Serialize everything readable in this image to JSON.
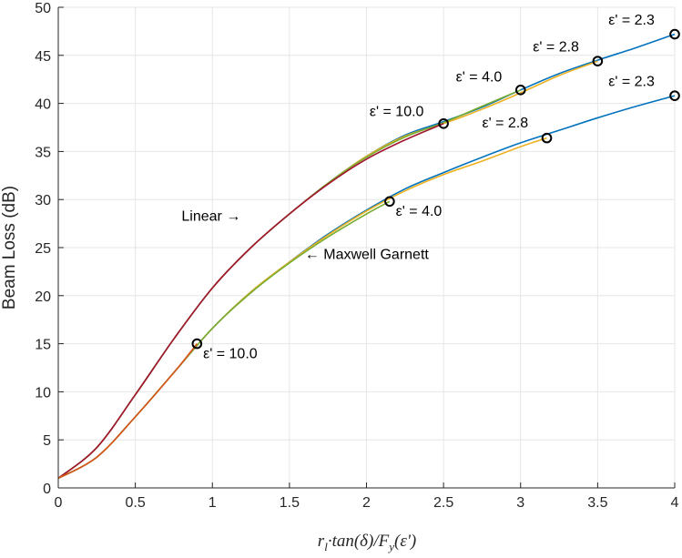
{
  "chart_data": {
    "type": "line",
    "title": "",
    "xlabel": "r_l·tan(δ)/F_y(ε')",
    "xlabel_parts": {
      "r": "r",
      "r_sub": "l",
      "mid": "·tan(δ)/",
      "F": "F",
      "F_sub": "y",
      "tail": "(ε')"
    },
    "ylabel": "Beam Loss (dB)",
    "xlim": [
      0,
      4
    ],
    "ylim": [
      0,
      50
    ],
    "grid": true,
    "xticks": [
      0,
      0.5,
      1,
      1.5,
      2,
      2.5,
      3,
      3.5,
      4
    ],
    "xtick_labels": [
      "0",
      "0.5",
      "1",
      "1.5",
      "2",
      "2.5",
      "3",
      "3.5",
      "4"
    ],
    "yticks": [
      0,
      5,
      10,
      15,
      20,
      25,
      30,
      35,
      40,
      45,
      50
    ],
    "ytick_labels": [
      "0",
      "5",
      "10",
      "15",
      "20",
      "25",
      "30",
      "35",
      "40",
      "45",
      "50"
    ],
    "colors": {
      "blue": "#0072BD",
      "orange": "#D95319",
      "yellow": "#EDB120",
      "green": "#77AC30",
      "red": "#A2142F",
      "axis": "#262626",
      "grid": "#e6e6e6"
    },
    "series": [
      {
        "name": "Linear ε'=2.3",
        "model": "Linear",
        "color": "#0072BD",
        "x": [
          0,
          0.25,
          0.5,
          0.75,
          1,
          1.25,
          1.5,
          1.75,
          2,
          2.25,
          2.5,
          2.75,
          3,
          3.25,
          3.5,
          3.75,
          4
        ],
        "y": [
          1.0,
          4.2,
          9.7,
          15.5,
          20.8,
          25.0,
          28.5,
          31.7,
          34.5,
          36.7,
          38.1,
          39.6,
          41.4,
          43.1,
          44.5,
          45.8,
          47.2
        ]
      },
      {
        "name": "Linear ε'=2.8",
        "model": "Linear",
        "color": "#EDB120",
        "x": [
          0,
          0.25,
          0.5,
          0.75,
          1,
          1.25,
          1.5,
          1.75,
          2,
          2.25,
          2.5,
          2.75,
          3,
          3.25,
          3.5
        ],
        "y": [
          1.0,
          4.2,
          9.7,
          15.5,
          20.8,
          25.0,
          28.5,
          31.7,
          34.5,
          36.6,
          37.9,
          39.4,
          41.1,
          42.9,
          44.4
        ]
      },
      {
        "name": "Linear ε'=4.0",
        "model": "Linear",
        "color": "#77AC30",
        "x": [
          0,
          0.25,
          0.5,
          0.75,
          1,
          1.25,
          1.5,
          1.75,
          2,
          2.25,
          2.5,
          2.75,
          3
        ],
        "y": [
          1.0,
          4.2,
          9.7,
          15.5,
          20.8,
          25.0,
          28.5,
          31.7,
          34.4,
          36.5,
          38.0,
          39.7,
          41.4
        ]
      },
      {
        "name": "Linear ε'=10.0",
        "model": "Linear",
        "color": "#A2142F",
        "x": [
          0,
          0.25,
          0.5,
          0.75,
          1,
          1.25,
          1.5,
          1.75,
          2,
          2.25,
          2.5
        ],
        "y": [
          1.0,
          4.2,
          9.7,
          15.5,
          20.8,
          25.0,
          28.5,
          31.6,
          34.2,
          36.2,
          37.9
        ]
      },
      {
        "name": "Maxwell Garnett ε'=2.3",
        "model": "Maxwell Garnett",
        "color": "#0072BD",
        "x": [
          0,
          0.25,
          0.5,
          0.75,
          1,
          1.25,
          1.5,
          1.75,
          2,
          2.25,
          2.5,
          2.75,
          3,
          3.25,
          3.5,
          3.75,
          4
        ],
        "y": [
          1.0,
          3.2,
          7.4,
          12.0,
          16.6,
          20.4,
          23.5,
          26.4,
          28.9,
          31.1,
          32.8,
          34.4,
          35.9,
          37.2,
          38.5,
          39.7,
          40.8
        ]
      },
      {
        "name": "Maxwell Garnett ε'=2.8",
        "model": "Maxwell Garnett",
        "color": "#EDB120",
        "x": [
          0,
          0.25,
          0.5,
          0.75,
          1,
          1.25,
          1.5,
          1.75,
          2,
          2.25,
          2.5,
          2.75,
          3,
          3.17
        ],
        "y": [
          1.0,
          3.2,
          7.4,
          12.0,
          16.6,
          20.4,
          23.5,
          26.3,
          28.8,
          30.9,
          32.6,
          34.0,
          35.5,
          36.4
        ]
      },
      {
        "name": "Maxwell Garnett ε'=4.0",
        "model": "Maxwell Garnett",
        "color": "#77AC30",
        "x": [
          0,
          0.25,
          0.5,
          0.75,
          1,
          1.25,
          1.5,
          1.75,
          2,
          2.15
        ],
        "y": [
          1.0,
          3.2,
          7.4,
          12.0,
          16.6,
          20.3,
          23.4,
          26.1,
          28.5,
          29.8
        ]
      },
      {
        "name": "Maxwell Garnett ε'=10.0",
        "model": "Maxwell Garnett",
        "color": "#D95319",
        "x": [
          0,
          0.25,
          0.5,
          0.75,
          0.9
        ],
        "y": [
          1.0,
          3.2,
          7.4,
          12.0,
          15.0
        ]
      }
    ],
    "markers": [
      {
        "x": 0.9,
        "y": 15.0
      },
      {
        "x": 2.15,
        "y": 29.8
      },
      {
        "x": 3.17,
        "y": 36.4
      },
      {
        "x": 4.0,
        "y": 40.8
      },
      {
        "x": 2.5,
        "y": 37.9
      },
      {
        "x": 3.0,
        "y": 41.4
      },
      {
        "x": 3.5,
        "y": 44.4
      },
      {
        "x": 4.0,
        "y": 47.2
      }
    ],
    "annotations": [
      {
        "text": "ε' = 10.0",
        "x": 0.94,
        "y": 13.5
      },
      {
        "text": "ε' = 4.0",
        "x": 2.19,
        "y": 28.3
      },
      {
        "text": "ε' = 2.8",
        "x": 2.75,
        "y": 37.5
      },
      {
        "text": "ε' = 2.3",
        "x": 3.57,
        "y": 41.8
      },
      {
        "text": "ε' = 10.0",
        "x": 2.02,
        "y": 38.7
      },
      {
        "text": "ε' = 4.0",
        "x": 2.58,
        "y": 42.3
      },
      {
        "text": "ε' = 2.8",
        "x": 3.08,
        "y": 45.4
      },
      {
        "text": "ε' = 2.3",
        "x": 3.57,
        "y": 48.2
      },
      {
        "text": "Linear →",
        "x": 0.8,
        "y": 27.8
      },
      {
        "text": "← Maxwell Garnett",
        "x": 1.6,
        "y": 23.8
      }
    ]
  }
}
